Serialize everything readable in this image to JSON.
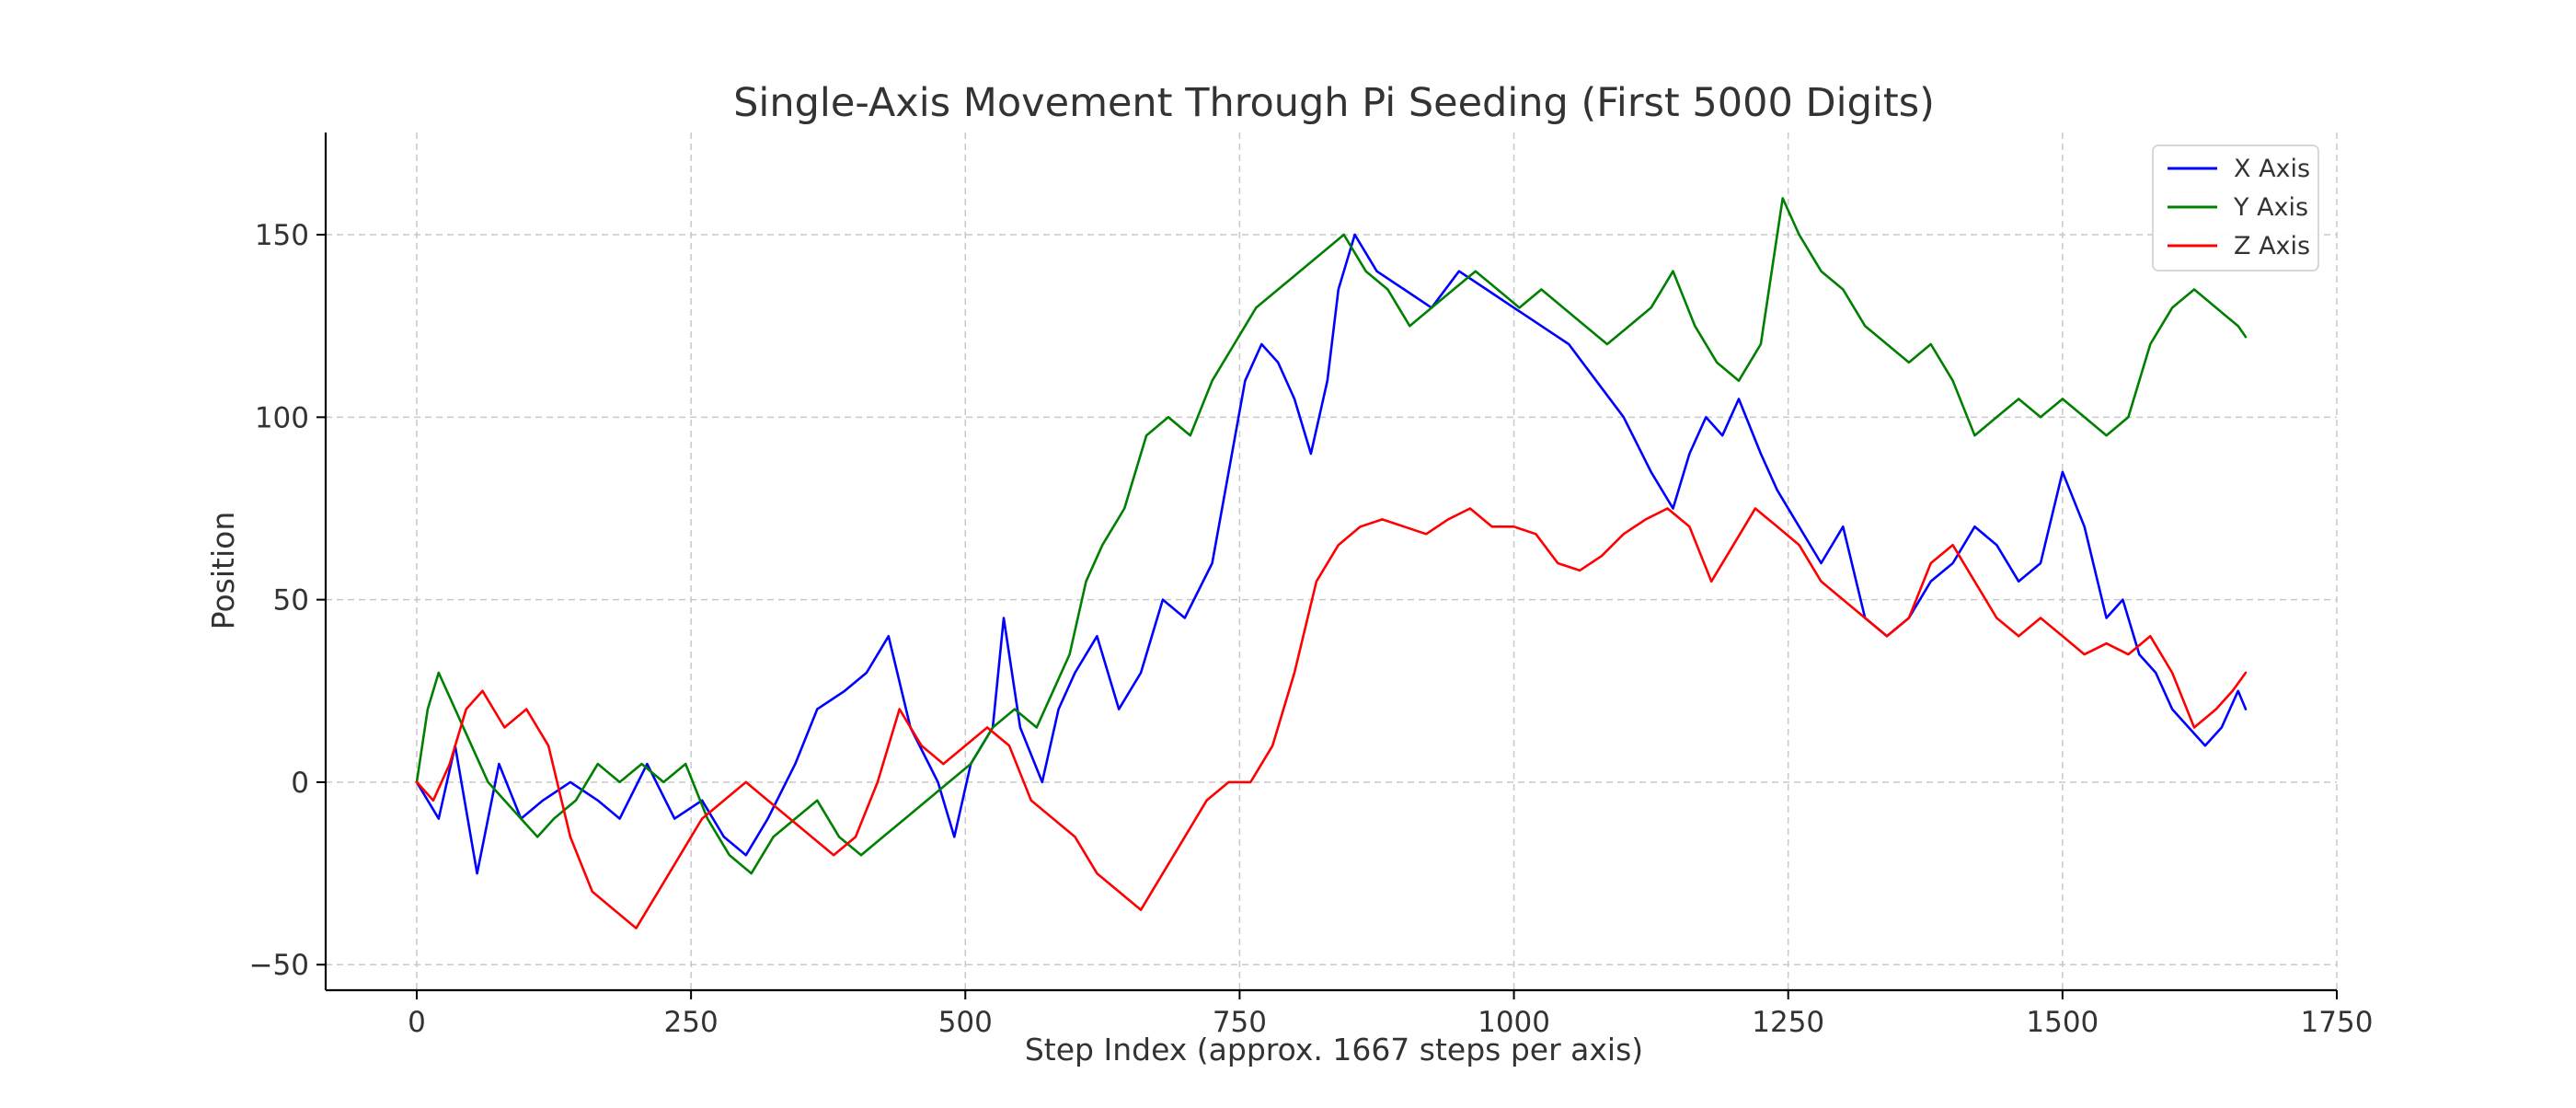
{
  "chart_data": {
    "type": "line",
    "title": "Single-Axis Movement Through Pi Seeding (First 5000 Digits)",
    "xlabel": "Step Index (approx. 1667 steps per axis)",
    "ylabel": "Position",
    "xlim": [
      -83,
      1750
    ],
    "ylim": [
      -57,
      178
    ],
    "xticks": [
      0,
      250,
      500,
      750,
      1000,
      1250,
      1500,
      1750
    ],
    "xtick_labels": [
      "0",
      "250",
      "500",
      "750",
      "1000",
      "1250",
      "1500",
      "1750"
    ],
    "yticks": [
      -50,
      0,
      50,
      100,
      150
    ],
    "ytick_labels": [
      "−50",
      "0",
      "50",
      "100",
      "150"
    ],
    "grid": true,
    "legend_position": "top-right",
    "series": [
      {
        "name": "X Axis",
        "color": "#0000ff",
        "points": [
          [
            0,
            0
          ],
          [
            20,
            -10
          ],
          [
            35,
            10
          ],
          [
            55,
            -25
          ],
          [
            75,
            5
          ],
          [
            95,
            -10
          ],
          [
            115,
            -5
          ],
          [
            140,
            0
          ],
          [
            165,
            -5
          ],
          [
            185,
            -10
          ],
          [
            210,
            5
          ],
          [
            235,
            -10
          ],
          [
            260,
            -5
          ],
          [
            280,
            -15
          ],
          [
            300,
            -20
          ],
          [
            320,
            -10
          ],
          [
            345,
            5
          ],
          [
            365,
            20
          ],
          [
            390,
            25
          ],
          [
            410,
            30
          ],
          [
            430,
            40
          ],
          [
            450,
            15
          ],
          [
            475,
            0
          ],
          [
            490,
            -15
          ],
          [
            505,
            5
          ],
          [
            525,
            15
          ],
          [
            535,
            45
          ],
          [
            550,
            15
          ],
          [
            570,
            0
          ],
          [
            585,
            20
          ],
          [
            600,
            30
          ],
          [
            620,
            40
          ],
          [
            640,
            20
          ],
          [
            660,
            30
          ],
          [
            680,
            50
          ],
          [
            700,
            45
          ],
          [
            725,
            60
          ],
          [
            740,
            85
          ],
          [
            755,
            110
          ],
          [
            770,
            120
          ],
          [
            785,
            115
          ],
          [
            800,
            105
          ],
          [
            815,
            90
          ],
          [
            830,
            110
          ],
          [
            840,
            135
          ],
          [
            855,
            150
          ],
          [
            875,
            140
          ],
          [
            900,
            135
          ],
          [
            925,
            130
          ],
          [
            950,
            140
          ],
          [
            975,
            135
          ],
          [
            1000,
            130
          ],
          [
            1025,
            125
          ],
          [
            1050,
            120
          ],
          [
            1075,
            110
          ],
          [
            1100,
            100
          ],
          [
            1125,
            85
          ],
          [
            1145,
            75
          ],
          [
            1160,
            90
          ],
          [
            1175,
            100
          ],
          [
            1190,
            95
          ],
          [
            1205,
            105
          ],
          [
            1225,
            90
          ],
          [
            1240,
            80
          ],
          [
            1260,
            70
          ],
          [
            1280,
            60
          ],
          [
            1300,
            70
          ],
          [
            1320,
            45
          ],
          [
            1340,
            40
          ],
          [
            1360,
            45
          ],
          [
            1380,
            55
          ],
          [
            1400,
            60
          ],
          [
            1420,
            70
          ],
          [
            1440,
            65
          ],
          [
            1460,
            55
          ],
          [
            1480,
            60
          ],
          [
            1500,
            85
          ],
          [
            1520,
            70
          ],
          [
            1540,
            45
          ],
          [
            1555,
            50
          ],
          [
            1570,
            35
          ],
          [
            1585,
            30
          ],
          [
            1600,
            20
          ],
          [
            1615,
            15
          ],
          [
            1630,
            10
          ],
          [
            1645,
            15
          ],
          [
            1660,
            25
          ],
          [
            1667,
            20
          ]
        ]
      },
      {
        "name": "Y Axis",
        "color": "#008000",
        "points": [
          [
            0,
            0
          ],
          [
            10,
            20
          ],
          [
            20,
            30
          ],
          [
            35,
            20
          ],
          [
            50,
            10
          ],
          [
            65,
            0
          ],
          [
            80,
            -5
          ],
          [
            95,
            -10
          ],
          [
            110,
            -15
          ],
          [
            125,
            -10
          ],
          [
            145,
            -5
          ],
          [
            165,
            5
          ],
          [
            185,
            0
          ],
          [
            205,
            5
          ],
          [
            225,
            0
          ],
          [
            245,
            5
          ],
          [
            265,
            -10
          ],
          [
            285,
            -20
          ],
          [
            305,
            -25
          ],
          [
            325,
            -15
          ],
          [
            345,
            -10
          ],
          [
            365,
            -5
          ],
          [
            385,
            -15
          ],
          [
            405,
            -20
          ],
          [
            425,
            -15
          ],
          [
            445,
            -10
          ],
          [
            465,
            -5
          ],
          [
            485,
            0
          ],
          [
            505,
            5
          ],
          [
            525,
            15
          ],
          [
            545,
            20
          ],
          [
            565,
            15
          ],
          [
            580,
            25
          ],
          [
            595,
            35
          ],
          [
            610,
            55
          ],
          [
            625,
            65
          ],
          [
            645,
            75
          ],
          [
            665,
            95
          ],
          [
            685,
            100
          ],
          [
            705,
            95
          ],
          [
            725,
            110
          ],
          [
            745,
            120
          ],
          [
            765,
            130
          ],
          [
            785,
            135
          ],
          [
            805,
            140
          ],
          [
            825,
            145
          ],
          [
            845,
            150
          ],
          [
            865,
            140
          ],
          [
            885,
            135
          ],
          [
            905,
            125
          ],
          [
            925,
            130
          ],
          [
            945,
            135
          ],
          [
            965,
            140
          ],
          [
            985,
            135
          ],
          [
            1005,
            130
          ],
          [
            1025,
            135
          ],
          [
            1045,
            130
          ],
          [
            1065,
            125
          ],
          [
            1085,
            120
          ],
          [
            1105,
            125
          ],
          [
            1125,
            130
          ],
          [
            1145,
            140
          ],
          [
            1165,
            125
          ],
          [
            1185,
            115
          ],
          [
            1205,
            110
          ],
          [
            1225,
            120
          ],
          [
            1245,
            160
          ],
          [
            1260,
            150
          ],
          [
            1280,
            140
          ],
          [
            1300,
            135
          ],
          [
            1320,
            125
          ],
          [
            1340,
            120
          ],
          [
            1360,
            115
          ],
          [
            1380,
            120
          ],
          [
            1400,
            110
          ],
          [
            1420,
            95
          ],
          [
            1440,
            100
          ],
          [
            1460,
            105
          ],
          [
            1480,
            100
          ],
          [
            1500,
            105
          ],
          [
            1520,
            100
          ],
          [
            1540,
            95
          ],
          [
            1560,
            100
          ],
          [
            1580,
            120
          ],
          [
            1600,
            130
          ],
          [
            1620,
            135
          ],
          [
            1640,
            130
          ],
          [
            1660,
            125
          ],
          [
            1667,
            122
          ]
        ]
      },
      {
        "name": "Z Axis",
        "color": "#ff0000",
        "points": [
          [
            0,
            0
          ],
          [
            15,
            -5
          ],
          [
            30,
            5
          ],
          [
            45,
            20
          ],
          [
            60,
            25
          ],
          [
            80,
            15
          ],
          [
            100,
            20
          ],
          [
            120,
            10
          ],
          [
            140,
            -15
          ],
          [
            160,
            -30
          ],
          [
            180,
            -35
          ],
          [
            200,
            -40
          ],
          [
            220,
            -30
          ],
          [
            240,
            -20
          ],
          [
            260,
            -10
          ],
          [
            280,
            -5
          ],
          [
            300,
            0
          ],
          [
            320,
            -5
          ],
          [
            340,
            -10
          ],
          [
            360,
            -15
          ],
          [
            380,
            -20
          ],
          [
            400,
            -15
          ],
          [
            420,
            0
          ],
          [
            440,
            20
          ],
          [
            460,
            10
          ],
          [
            480,
            5
          ],
          [
            500,
            10
          ],
          [
            520,
            15
          ],
          [
            540,
            10
          ],
          [
            560,
            -5
          ],
          [
            580,
            -10
          ],
          [
            600,
            -15
          ],
          [
            620,
            -25
          ],
          [
            640,
            -30
          ],
          [
            660,
            -35
          ],
          [
            680,
            -25
          ],
          [
            700,
            -15
          ],
          [
            720,
            -5
          ],
          [
            740,
            0
          ],
          [
            760,
            0
          ],
          [
            780,
            10
          ],
          [
            800,
            30
          ],
          [
            820,
            55
          ],
          [
            840,
            65
          ],
          [
            860,
            70
          ],
          [
            880,
            72
          ],
          [
            900,
            70
          ],
          [
            920,
            68
          ],
          [
            940,
            72
          ],
          [
            960,
            75
          ],
          [
            980,
            70
          ],
          [
            1000,
            70
          ],
          [
            1020,
            68
          ],
          [
            1040,
            60
          ],
          [
            1060,
            58
          ],
          [
            1080,
            62
          ],
          [
            1100,
            68
          ],
          [
            1120,
            72
          ],
          [
            1140,
            75
          ],
          [
            1160,
            70
          ],
          [
            1180,
            55
          ],
          [
            1200,
            65
          ],
          [
            1220,
            75
          ],
          [
            1240,
            70
          ],
          [
            1260,
            65
          ],
          [
            1280,
            55
          ],
          [
            1300,
            50
          ],
          [
            1320,
            45
          ],
          [
            1340,
            40
          ],
          [
            1360,
            45
          ],
          [
            1380,
            60
          ],
          [
            1400,
            65
          ],
          [
            1420,
            55
          ],
          [
            1440,
            45
          ],
          [
            1460,
            40
          ],
          [
            1480,
            45
          ],
          [
            1500,
            40
          ],
          [
            1520,
            35
          ],
          [
            1540,
            38
          ],
          [
            1560,
            35
          ],
          [
            1580,
            40
          ],
          [
            1600,
            30
          ],
          [
            1620,
            15
          ],
          [
            1640,
            20
          ],
          [
            1655,
            25
          ],
          [
            1667,
            30
          ]
        ]
      }
    ]
  }
}
